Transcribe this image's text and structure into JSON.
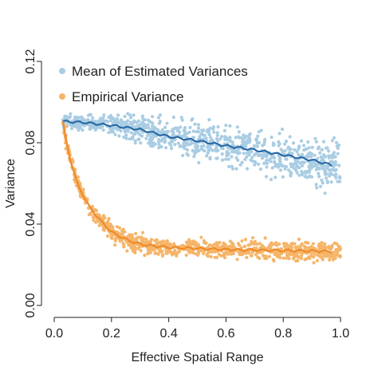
{
  "chart_data": {
    "type": "scatter",
    "title": "",
    "xlabel": "Effective Spatial Range",
    "ylabel": "Variance",
    "xlim": [
      0.0,
      1.0
    ],
    "ylim": [
      0.0,
      0.12
    ],
    "xticks": [
      0.0,
      0.2,
      0.4,
      0.6,
      0.8,
      1.0
    ],
    "xtick_labels": [
      "0.0",
      "0.2",
      "0.4",
      "0.6",
      "0.8",
      "1.0"
    ],
    "yticks": [
      0.0,
      0.04,
      0.08,
      0.12
    ],
    "ytick_labels": [
      "0.00",
      "0.04",
      "0.08",
      "0.12"
    ],
    "grid": false,
    "legend_position": "top-left",
    "series": [
      {
        "name": "Mean of Estimated Variances",
        "point_color": "#a9cde3",
        "line_color": "#2a6aa6",
        "x_range": [
          0.03,
          1.0
        ],
        "trend": [
          [
            0.03,
            0.0905
          ],
          [
            0.1,
            0.09
          ],
          [
            0.2,
            0.0885
          ],
          [
            0.3,
            0.0865
          ],
          [
            0.4,
            0.083
          ],
          [
            0.5,
            0.081
          ],
          [
            0.6,
            0.0785
          ],
          [
            0.7,
            0.0765
          ],
          [
            0.8,
            0.074
          ],
          [
            0.9,
            0.0715
          ],
          [
            0.97,
            0.069
          ]
        ],
        "spread": [
          [
            0.03,
            0.002
          ],
          [
            0.2,
            0.0035
          ],
          [
            0.5,
            0.0065
          ],
          [
            1.0,
            0.0085
          ]
        ]
      },
      {
        "name": "Empirical Variance",
        "point_color": "#f5b56a",
        "line_color": "#ef8a2a",
        "x_range": [
          0.03,
          1.0
        ],
        "trend": [
          [
            0.03,
            0.09
          ],
          [
            0.05,
            0.075
          ],
          [
            0.08,
            0.06
          ],
          [
            0.12,
            0.049
          ],
          [
            0.16,
            0.042
          ],
          [
            0.2,
            0.036
          ],
          [
            0.25,
            0.0325
          ],
          [
            0.3,
            0.03
          ],
          [
            0.4,
            0.0285
          ],
          [
            0.5,
            0.028
          ],
          [
            0.6,
            0.0275
          ],
          [
            0.7,
            0.0272
          ],
          [
            0.8,
            0.027
          ],
          [
            0.9,
            0.0268
          ],
          [
            0.97,
            0.0265
          ]
        ],
        "spread": [
          [
            0.03,
            0.003
          ],
          [
            0.2,
            0.003
          ],
          [
            0.5,
            0.0028
          ],
          [
            1.0,
            0.0035
          ]
        ]
      }
    ]
  }
}
